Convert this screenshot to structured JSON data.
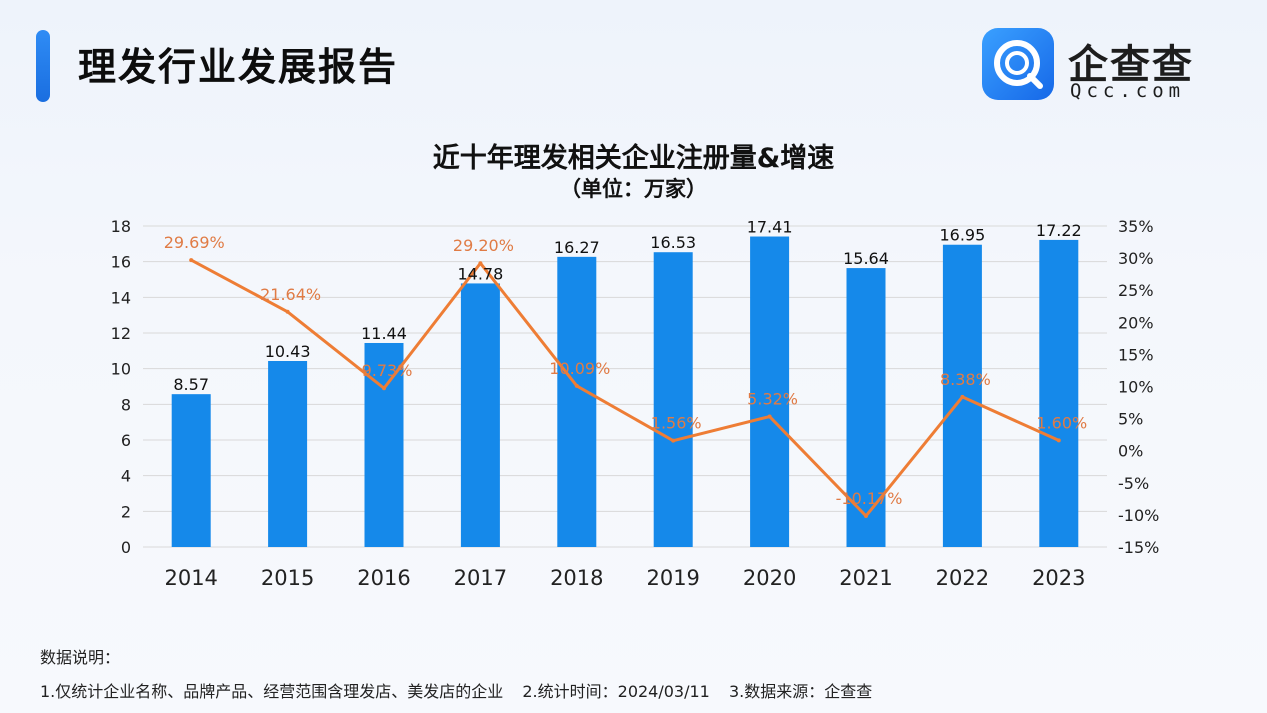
{
  "header": {
    "title": "理发行业发展报告",
    "logo_name": "企查查",
    "logo_domain": "Qcc.com"
  },
  "colors": {
    "bar": "#1589ea",
    "line": "#ee7d35",
    "line_label": "#e07b45",
    "grid": "#d9d9d9",
    "accent": "#1a78ee"
  },
  "chart_data": {
    "type": "bar",
    "title": "近十年理发相关企业注册量&增速",
    "subtitle": "（单位：万家）",
    "categories": [
      "2014",
      "2015",
      "2016",
      "2017",
      "2018",
      "2019",
      "2020",
      "2021",
      "2022",
      "2023"
    ],
    "series": [
      {
        "type": "bar",
        "axis": "left",
        "values": [
          8.57,
          10.43,
          11.44,
          14.78,
          16.27,
          16.53,
          17.41,
          15.64,
          16.95,
          17.22
        ],
        "labels": [
          "8.57",
          "10.43",
          "11.44",
          "14.78",
          "16.27",
          "16.53",
          "17.41",
          "15.64",
          "16.95",
          "17.22"
        ]
      },
      {
        "type": "line",
        "axis": "right",
        "values": [
          29.69,
          21.64,
          9.73,
          29.2,
          10.09,
          1.56,
          5.32,
          -10.17,
          8.38,
          1.6
        ],
        "labels": [
          "29.69%",
          "21.64%",
          "9.73%",
          "29.20%",
          "10.09%",
          "1.56%",
          "5.32%",
          "-10.17%",
          "8.38%",
          "1.60%"
        ]
      }
    ],
    "y_left": {
      "range": [
        0,
        18
      ],
      "ticks": [
        "0",
        "2",
        "4",
        "6",
        "8",
        "10",
        "12",
        "14",
        "16",
        "18"
      ]
    },
    "y_right": {
      "range": [
        -15,
        35
      ],
      "ticks": [
        "-15%",
        "-10%",
        "-5%",
        "0%",
        "5%",
        "10%",
        "15%",
        "20%",
        "25%",
        "30%",
        "35%"
      ]
    },
    "grid": true
  },
  "notes": {
    "heading": "数据说明：",
    "items": [
      "1.仅统计企业名称、品牌产品、经营范围含理发店、美发店的企业",
      "2.统计时间：2024/03/11",
      "3.数据来源：企查查"
    ]
  }
}
